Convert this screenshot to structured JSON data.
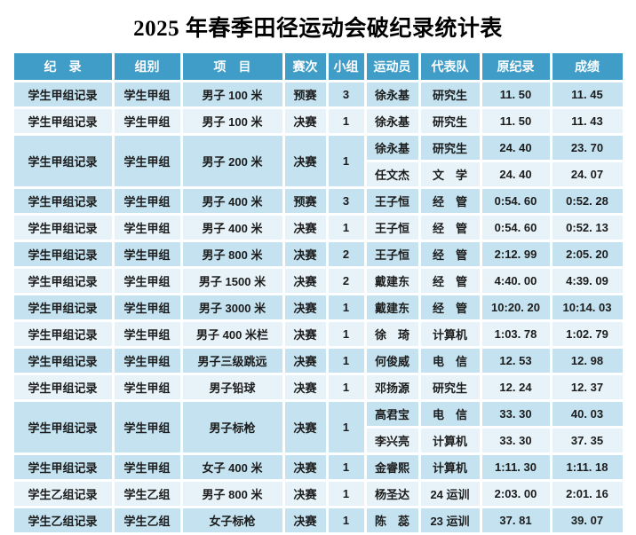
{
  "title": "2025 年春季田径运动会破纪录统计表",
  "colors": {
    "header_bg": "#3f9dc8",
    "header_text": "#ffffff",
    "row_blue": "#c4e2ef",
    "row_pale": "#e7f3f8",
    "body_text": "#1c1c1c"
  },
  "table": {
    "columns": [
      "纪　录",
      "组别",
      "项　目",
      "赛次",
      "小组",
      "运动员",
      "代表队",
      "原纪录",
      "成绩"
    ],
    "rows": [
      {
        "record": "学生甲组记录",
        "group": "学生甲组",
        "event": "男子 100 米",
        "round": "预赛",
        "heat": "3",
        "athletes": [
          {
            "name": "徐永基",
            "team": "研究生",
            "old": "11. 50",
            "result": "11. 45"
          }
        ]
      },
      {
        "record": "学生甲组记录",
        "group": "学生甲组",
        "event": "男子 100 米",
        "round": "决赛",
        "heat": "1",
        "athletes": [
          {
            "name": "徐永基",
            "team": "研究生",
            "old": "11. 50",
            "result": "11. 43"
          }
        ]
      },
      {
        "record": "学生甲组记录",
        "group": "学生甲组",
        "event": "男子 200 米",
        "round": "决赛",
        "heat": "1",
        "athletes": [
          {
            "name": "徐永基",
            "team": "研究生",
            "old": "24. 40",
            "result": "23. 70"
          },
          {
            "name": "任文杰",
            "team": "文　学",
            "old": "24. 40",
            "result": "24. 07"
          }
        ]
      },
      {
        "record": "学生甲组记录",
        "group": "学生甲组",
        "event": "男子 400 米",
        "round": "预赛",
        "heat": "3",
        "athletes": [
          {
            "name": "王子恒",
            "team": "经　管",
            "old": "0:54. 60",
            "result": "0:52. 28"
          }
        ]
      },
      {
        "record": "学生甲组记录",
        "group": "学生甲组",
        "event": "男子 400 米",
        "round": "决赛",
        "heat": "1",
        "athletes": [
          {
            "name": "王子恒",
            "team": "经　管",
            "old": "0:54. 60",
            "result": "0:52. 13"
          }
        ]
      },
      {
        "record": "学生甲组记录",
        "group": "学生甲组",
        "event": "男子 800 米",
        "round": "决赛",
        "heat": "2",
        "athletes": [
          {
            "name": "王子恒",
            "team": "经　管",
            "old": "2:12. 99",
            "result": "2:05. 20"
          }
        ]
      },
      {
        "record": "学生甲组记录",
        "group": "学生甲组",
        "event": "男子 1500 米",
        "round": "决赛",
        "heat": "2",
        "athletes": [
          {
            "name": "戴建东",
            "team": "经　管",
            "old": "4:40. 00",
            "result": "4:39. 09"
          }
        ]
      },
      {
        "record": "学生甲组记录",
        "group": "学生甲组",
        "event": "男子 3000 米",
        "round": "决赛",
        "heat": "1",
        "athletes": [
          {
            "name": "戴建东",
            "team": "经　管",
            "old": "10:20. 20",
            "result": "10:14. 03"
          }
        ]
      },
      {
        "record": "学生甲组记录",
        "group": "学生甲组",
        "event": "男子 400 米栏",
        "round": "决赛",
        "heat": "1",
        "athletes": [
          {
            "name": "徐　琦",
            "team": "计算机",
            "old": "1:03. 78",
            "result": "1:02. 79"
          }
        ]
      },
      {
        "record": "学生甲组记录",
        "group": "学生甲组",
        "event": "男子三级跳远",
        "round": "决赛",
        "heat": "1",
        "athletes": [
          {
            "name": "何俊威",
            "team": "电　信",
            "old": "12. 53",
            "result": "12. 98"
          }
        ]
      },
      {
        "record": "学生甲组记录",
        "group": "学生甲组",
        "event": "男子铅球",
        "round": "决赛",
        "heat": "1",
        "athletes": [
          {
            "name": "邓扬源",
            "team": "研究生",
            "old": "12. 24",
            "result": "12. 37"
          }
        ]
      },
      {
        "record": "学生甲组记录",
        "group": "学生甲组",
        "event": "男子标枪",
        "round": "决赛",
        "heat": "1",
        "athletes": [
          {
            "name": "高君宝",
            "team": "电　信",
            "old": "33. 30",
            "result": "40. 03"
          },
          {
            "name": "李兴亮",
            "team": "计算机",
            "old": "33. 30",
            "result": "37. 35"
          }
        ]
      },
      {
        "record": "学生甲组记录",
        "group": "学生甲组",
        "event": "女子 400 米",
        "round": "决赛",
        "heat": "1",
        "athletes": [
          {
            "name": "金睿熙",
            "team": "计算机",
            "old": "1:11. 30",
            "result": "1:11. 18"
          }
        ]
      },
      {
        "record": "学生乙组记录",
        "group": "学生乙组",
        "event": "男子 800 米",
        "round": "决赛",
        "heat": "1",
        "athletes": [
          {
            "name": "杨圣达",
            "team": "24 运训",
            "old": "2:03. 00",
            "result": "2:01. 16"
          }
        ]
      },
      {
        "record": "学生乙组记录",
        "group": "学生乙组",
        "event": "女子标枪",
        "round": "决赛",
        "heat": "1",
        "athletes": [
          {
            "name": "陈　蕊",
            "team": "23 运训",
            "old": "37. 81",
            "result": "39. 07"
          }
        ]
      }
    ]
  }
}
